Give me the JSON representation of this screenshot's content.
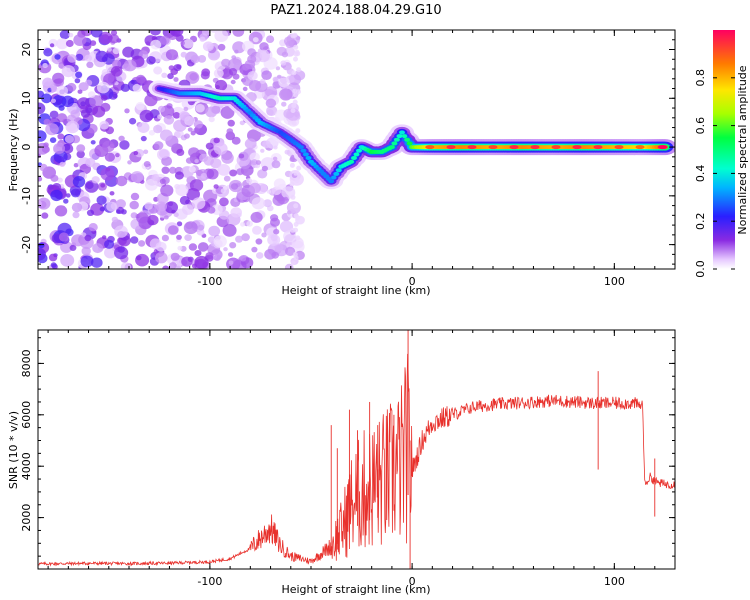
{
  "title": "PAZ1.2024.188.04.29.G10",
  "chart_data": [
    {
      "type": "heatmap",
      "xlabel": "Height of straight line (km)",
      "ylabel": "Frequency (Hz)",
      "xlim": [
        -185,
        130
      ],
      "ylim": [
        -25,
        24
      ],
      "xticks": [
        -100,
        0,
        100
      ],
      "xtick_labels": [
        "-100",
        "0",
        "100"
      ],
      "yticks": [
        -20,
        -10,
        0,
        10,
        20
      ],
      "ytick_labels": [
        "-20",
        "-10",
        "0",
        "10",
        "20"
      ],
      "colorbar": {
        "label": "Normalized spectral amplitude",
        "range": [
          0,
          1
        ],
        "ticks": [
          0.0,
          0.2,
          0.4,
          0.6,
          0.8
        ],
        "tick_labels": [
          "0.0",
          "0.2",
          "0.4",
          "0.6",
          "0.8"
        ],
        "colormap": "rainbow (white-purple-blue-cyan-green-yellow-red)"
      },
      "ridge": [
        {
          "x": -125,
          "y": 12,
          "amp": 0.2
        },
        {
          "x": -115,
          "y": 11,
          "amp": 0.3
        },
        {
          "x": -105,
          "y": 11,
          "amp": 0.35
        },
        {
          "x": -95,
          "y": 10,
          "amp": 0.45
        },
        {
          "x": -88,
          "y": 10,
          "amp": 0.4
        },
        {
          "x": -80,
          "y": 7,
          "amp": 0.3
        },
        {
          "x": -75,
          "y": 5,
          "amp": 0.35
        },
        {
          "x": -70,
          "y": 4,
          "amp": 0.3
        },
        {
          "x": -65,
          "y": 3,
          "amp": 0.25
        },
        {
          "x": -55,
          "y": 0,
          "amp": 0.3
        },
        {
          "x": -50,
          "y": -3,
          "amp": 0.35
        },
        {
          "x": -45,
          "y": -5,
          "amp": 0.3
        },
        {
          "x": -40,
          "y": -7,
          "amp": 0.3
        },
        {
          "x": -35,
          "y": -4,
          "amp": 0.4
        },
        {
          "x": -30,
          "y": -3,
          "amp": 0.45
        },
        {
          "x": -25,
          "y": 0,
          "amp": 0.4
        },
        {
          "x": -20,
          "y": -1,
          "amp": 0.55
        },
        {
          "x": -15,
          "y": -1,
          "amp": 0.5
        },
        {
          "x": -10,
          "y": 0,
          "amp": 0.5
        },
        {
          "x": -5,
          "y": 3,
          "amp": 0.4
        },
        {
          "x": 0,
          "y": 0,
          "amp": 0.6
        },
        {
          "x": 10,
          "y": 0,
          "amp": 0.8
        },
        {
          "x": 25,
          "y": 0,
          "amp": 0.85
        },
        {
          "x": 40,
          "y": 0,
          "amp": 0.8
        },
        {
          "x": 55,
          "y": 0,
          "amp": 0.85
        },
        {
          "x": 70,
          "y": 0,
          "amp": 0.8
        },
        {
          "x": 85,
          "y": 0,
          "amp": 0.85
        },
        {
          "x": 100,
          "y": 0,
          "amp": 0.8
        },
        {
          "x": 115,
          "y": 0,
          "amp": 0.75
        },
        {
          "x": 125,
          "y": 0,
          "amp": 0.9
        }
      ]
    },
    {
      "type": "line",
      "xlabel": "Height of straight line (km)",
      "ylabel": "SNR (10 * v/v)",
      "xlim": [
        -185,
        130
      ],
      "ylim": [
        0,
        9300
      ],
      "xticks": [
        -100,
        0,
        100
      ],
      "xtick_labels": [
        "-100",
        "0",
        "100"
      ],
      "yticks": [
        2000,
        4000,
        6000,
        8000
      ],
      "ytick_labels": [
        "2000",
        "4000",
        "6000",
        "8000"
      ],
      "line_color": "#e8312c",
      "x": [
        -185,
        -160,
        -140,
        -120,
        -100,
        -90,
        -80,
        -75,
        -70,
        -65,
        -60,
        -55,
        -50,
        -45,
        -40,
        -35,
        -30,
        -25,
        -20,
        -15,
        -10,
        -5,
        -2,
        0,
        5,
        10,
        20,
        30,
        40,
        50,
        60,
        70,
        80,
        90,
        100,
        110,
        112,
        114,
        115,
        118,
        120,
        125,
        130
      ],
      "y": [
        200,
        220,
        210,
        230,
        280,
        400,
        800,
        1200,
        1600,
        900,
        500,
        400,
        300,
        600,
        900,
        1500,
        2500,
        3000,
        3200,
        3400,
        3700,
        4100,
        4800,
        3800,
        5000,
        5700,
        6000,
        6300,
        6400,
        6450,
        6500,
        6550,
        6500,
        6450,
        6450,
        6450,
        6350,
        6400,
        3300,
        3600,
        3400,
        3300,
        3300
      ]
    }
  ]
}
